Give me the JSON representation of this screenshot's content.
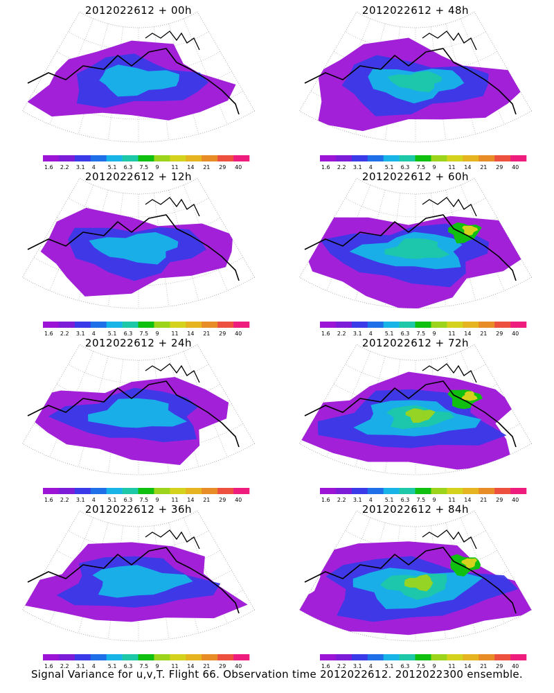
{
  "panels": [
    {
      "title": "2012022612  + 00h",
      "intensity": 0.35
    },
    {
      "title": "2012022612  + 48h",
      "intensity": 0.55
    },
    {
      "title": "2012022612  + 12h",
      "intensity": 0.4
    },
    {
      "title": "2012022612  + 60h",
      "intensity": 0.7
    },
    {
      "title": "2012022612  + 24h",
      "intensity": 0.45
    },
    {
      "title": "2012022612  + 72h",
      "intensity": 0.8
    },
    {
      "title": "2012022612  + 36h",
      "intensity": 0.5
    },
    {
      "title": "2012022612  + 84h",
      "intensity": 0.9
    }
  ],
  "colorbar": {
    "labels": [
      "1.6",
      "2.2",
      "3.1",
      "4",
      "5.1",
      "6.3",
      "7.5",
      "9",
      "11",
      "14",
      "21",
      "29",
      "40"
    ],
    "colors": [
      "#9c14d6",
      "#7c1cd8",
      "#3a3ae8",
      "#1f6fe8",
      "#18b4e8",
      "#1cc8a8",
      "#10c010",
      "#9cd41c",
      "#d4d21c",
      "#e6b420",
      "#e88c28",
      "#ee5040",
      "#ee1c7c"
    ]
  },
  "footer": "Signal Variance for u,v,T. Flight 66. Observation time 2012022612. 2012022300 ensemble."
}
